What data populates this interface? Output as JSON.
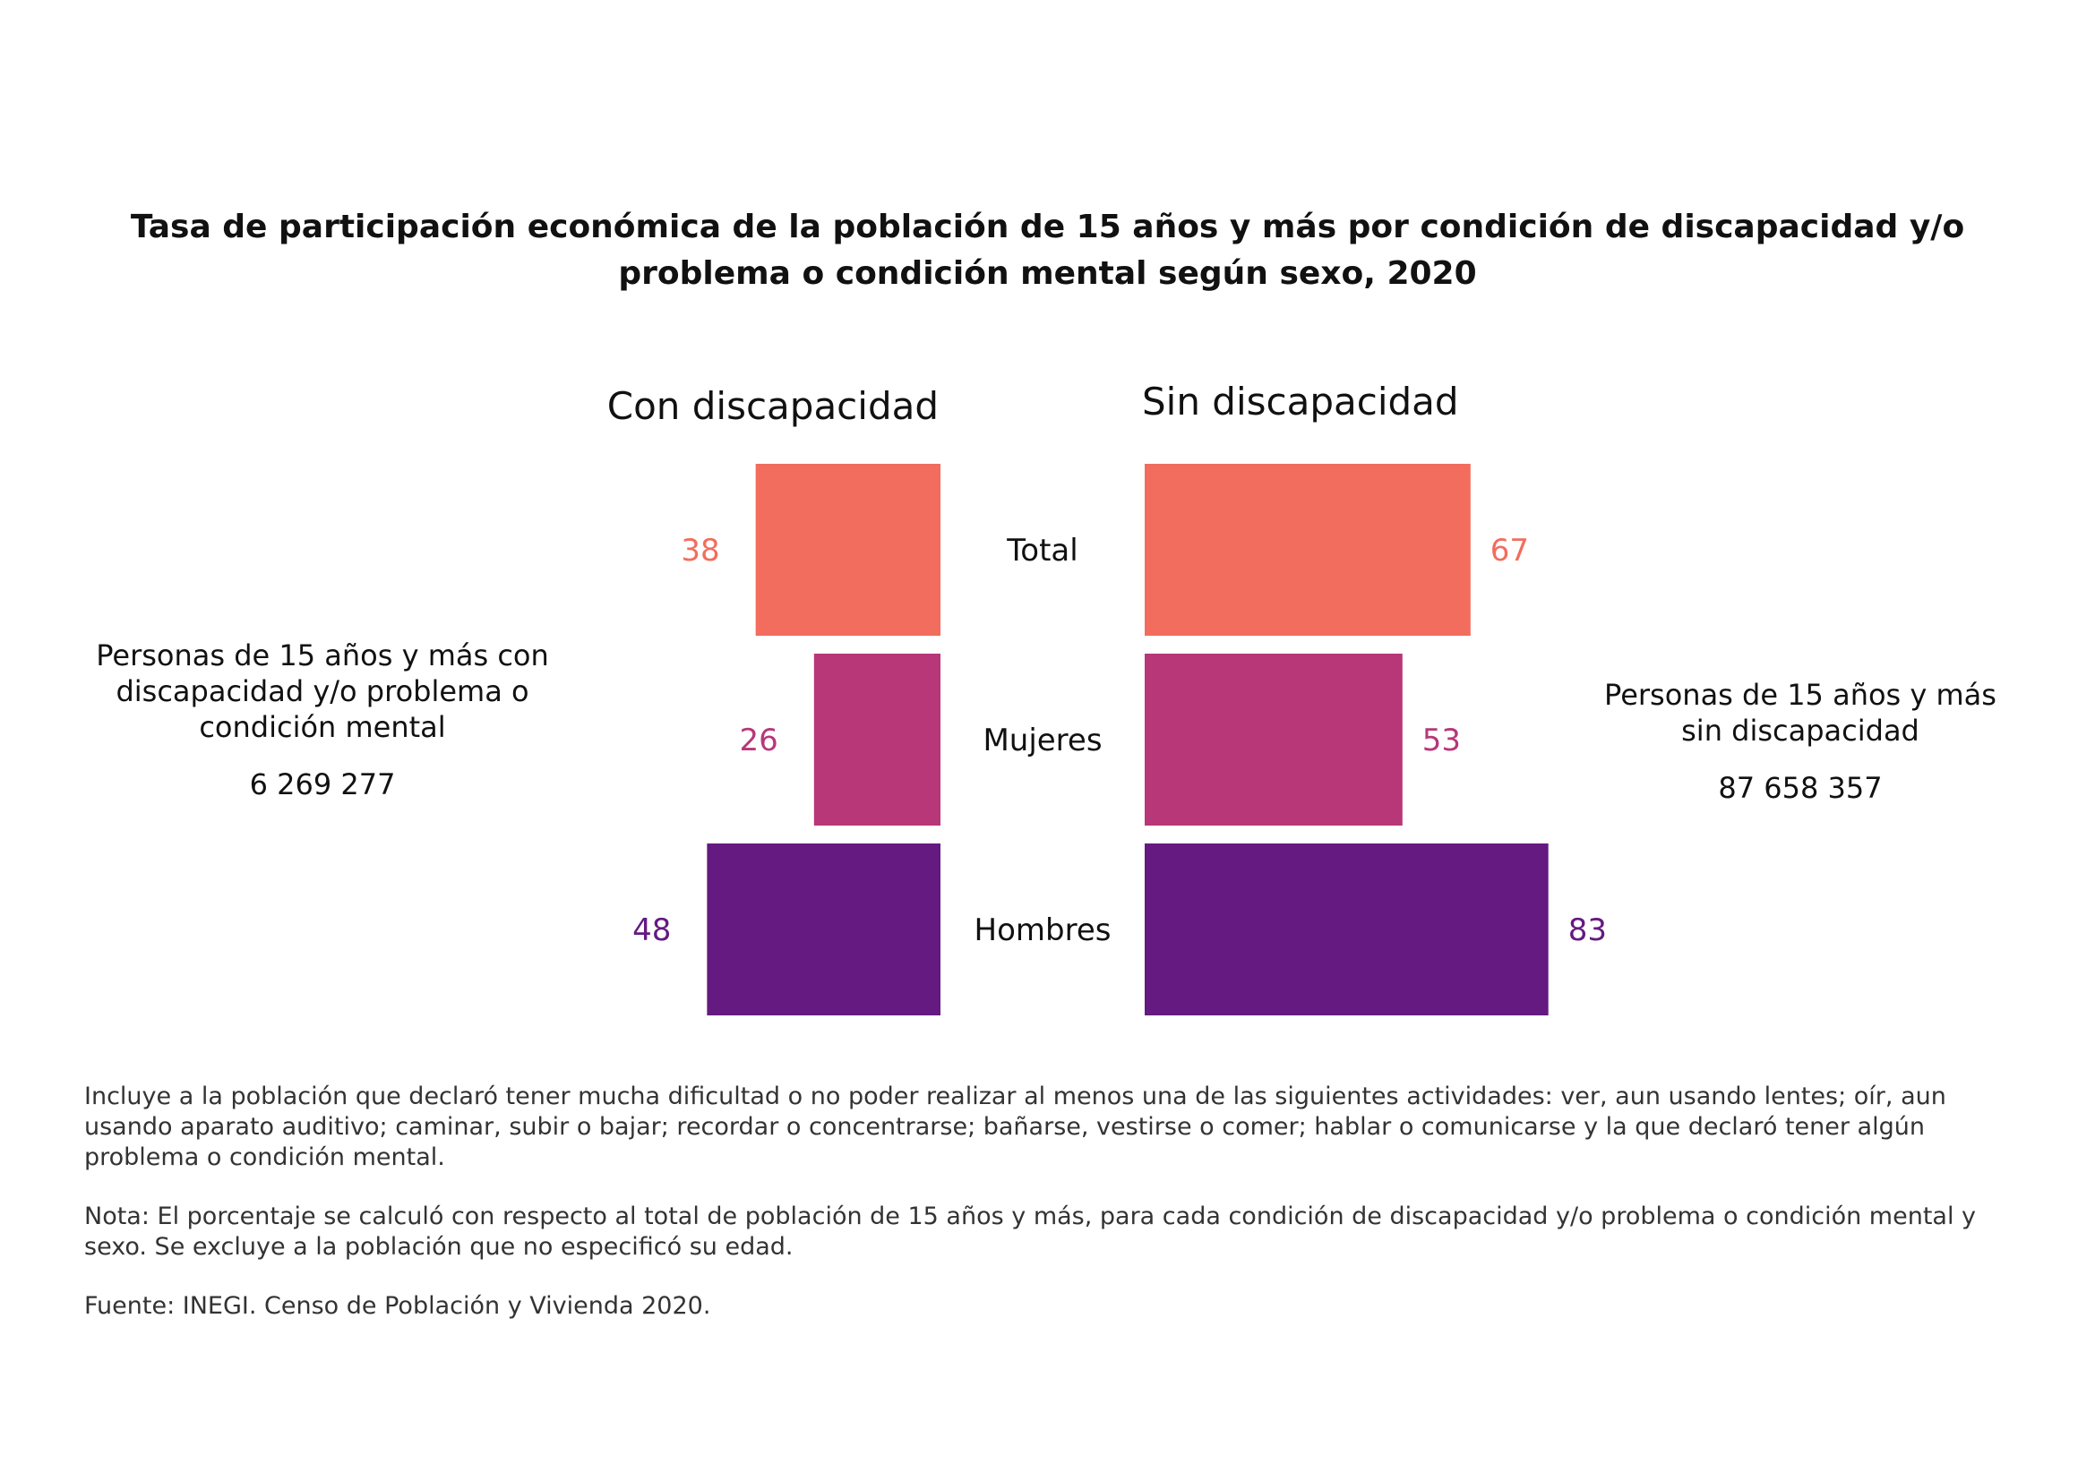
{
  "title": {
    "line1": "Tasa de participación económica de la población de 15 años y más por condición de discapacidad y/o",
    "line2": "problema o condición mental según sexo, 2020"
  },
  "chart_data": {
    "type": "bar",
    "orientation": "horizontal-mirrored",
    "categories": [
      "Total",
      "Mujeres",
      "Hombres"
    ],
    "series": [
      {
        "name": "Con discapacidad",
        "values": [
          38,
          26,
          48
        ]
      },
      {
        "name": "Sin discapacidad",
        "values": [
          67,
          53,
          83
        ]
      }
    ],
    "colors": [
      "#F26D5E",
      "#B73779",
      "#641A80"
    ],
    "xlim": [
      0,
      100
    ]
  },
  "left_block": {
    "description": "Personas de 15 años y más con discapacidad y/o problema o condición mental",
    "line1": "Personas de 15 años y más con",
    "line2": "discapacidad y/o problema o",
    "line3": "condición mental",
    "count": "6 269 277"
  },
  "right_block": {
    "line1": "Personas de 15 años y más",
    "line2": "sin discapacidad",
    "count": "87 658 357"
  },
  "notes": {
    "definition": "Incluye a la población que declaró tener mucha dificultad o no poder realizar al menos una de las siguientes actividades: ver, aun usando lentes; oír, aun usando aparato auditivo; caminar, subir o bajar; recordar o concentrarse; bañarse, vestirse o comer; hablar o comunicarse y la que declaró tener algún problema o condición mental.",
    "nota": "Nota: El porcentaje se calculó con respecto al total de población de 15 años y más, para cada condición de discapacidad y/o problema o condición mental y sexo. Se excluye a la población que no especificó su edad.",
    "fuente": "Fuente: INEGI. Censo de Población y Vivienda 2020."
  }
}
